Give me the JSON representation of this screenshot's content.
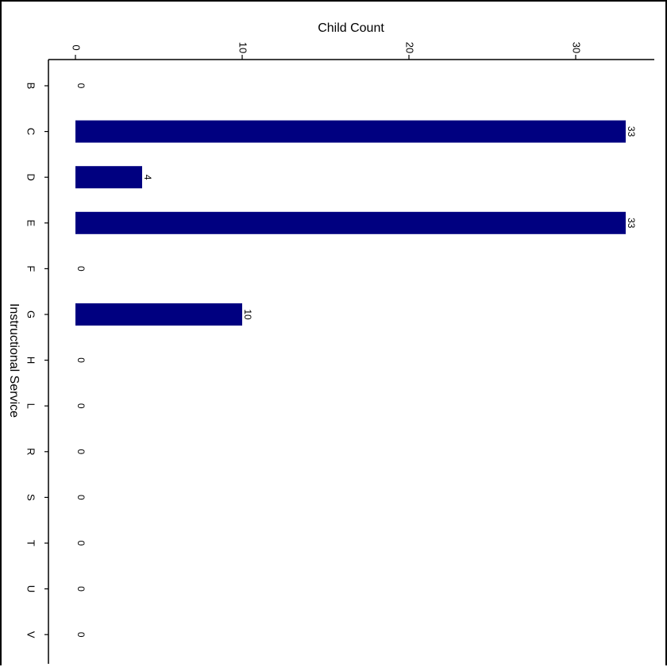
{
  "chart_data": {
    "type": "bar",
    "orientation": "horizontal",
    "xlabel": "Child Count",
    "ylabel": "Instructional Service",
    "categories": [
      "B",
      "C",
      "D",
      "E",
      "F",
      "G",
      "H",
      "L",
      "R",
      "S",
      "T",
      "U",
      "V"
    ],
    "values": [
      0,
      33,
      4,
      33,
      0,
      10,
      0,
      0,
      0,
      0,
      0,
      0,
      0
    ],
    "xlim": [
      0,
      34
    ],
    "xticks": [
      0,
      10,
      20,
      30
    ],
    "bar_color": "#000080",
    "grid": false,
    "legend": "none"
  }
}
